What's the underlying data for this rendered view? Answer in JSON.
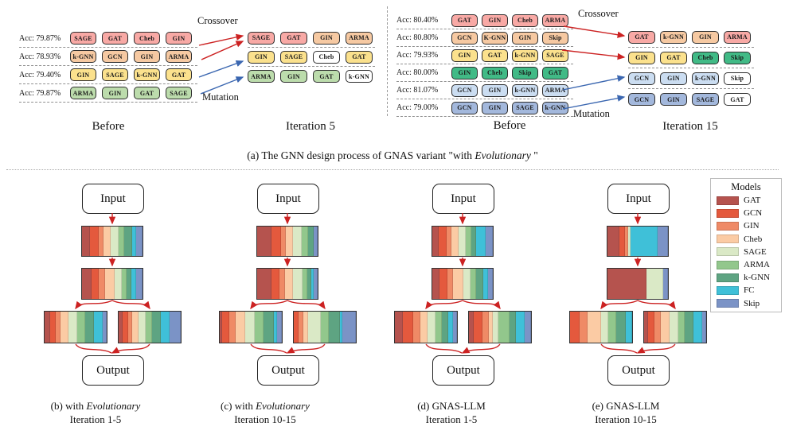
{
  "colors": {
    "chip": {
      "pink": "#F8A9A5",
      "orange": "#F6C9A2",
      "yellow": "#FBE18D",
      "green": "#BCDCAC",
      "vivid_green": "#41BA86",
      "light_blue": "#CBDDF1",
      "blue": "#A3B8DC",
      "white": "#FFFFFF"
    },
    "models": {
      "GAT": "#B5534E",
      "GCN": "#E4593D",
      "GIN": "#EF8A66",
      "Cheb": "#FBCBA4",
      "SAGE": "#DAE9C6",
      "ARMA": "#92C78C",
      "k-GNN": "#5EA482",
      "FC": "#3FC0D8",
      "Skip": "#7B93C6"
    },
    "crossover_arrow": "#CC2222",
    "mutation_arrow": "#3A66B0",
    "connector": "#CC2222"
  },
  "panel_a": {
    "caption": {
      "prefix": "(a) The GNN design process of GNAS variant \"with ",
      "italic": "Evolutionary",
      "suffix": " \""
    },
    "crossover_label": "Crossover",
    "mutation_label": "Mutation",
    "left_before": {
      "label": "Before",
      "rows": [
        {
          "acc": "Acc: 79.87%",
          "chips": [
            [
              "SAGE",
              "pink"
            ],
            [
              "GAT",
              "pink"
            ],
            [
              "Cheb",
              "pink"
            ],
            [
              "GIN",
              "pink"
            ]
          ]
        },
        {
          "acc": "Acc: 78.93%",
          "chips": [
            [
              "k-GNN",
              "orange"
            ],
            [
              "GCN",
              "orange"
            ],
            [
              "GIN",
              "orange"
            ],
            [
              "ARMA",
              "orange"
            ]
          ]
        },
        {
          "acc": "Acc: 79.40%",
          "chips": [
            [
              "GIN",
              "yellow"
            ],
            [
              "SAGE",
              "yellow"
            ],
            [
              "k-GNN",
              "yellow"
            ],
            [
              "GAT",
              "yellow"
            ]
          ]
        },
        {
          "acc": "Acc: 79.87%",
          "chips": [
            [
              "ARMA",
              "green"
            ],
            [
              "GIN",
              "green"
            ],
            [
              "GAT",
              "green"
            ],
            [
              "SAGE",
              "green"
            ]
          ]
        }
      ]
    },
    "iteration5": {
      "label": "Iteration 5",
      "rows": [
        {
          "chips": [
            [
              "SAGE",
              "pink"
            ],
            [
              "GAT",
              "pink"
            ],
            [
              "GIN",
              "orange"
            ],
            [
              "ARMA",
              "orange"
            ]
          ]
        },
        {
          "chips": [
            [
              "GIN",
              "yellow"
            ],
            [
              "SAGE",
              "yellow"
            ],
            [
              "Cheb",
              "white"
            ],
            [
              "GAT",
              "yellow"
            ]
          ]
        },
        {
          "chips": [
            [
              "ARMA",
              "green"
            ],
            [
              "GIN",
              "green"
            ],
            [
              "GAT",
              "green"
            ],
            [
              "k-GNN",
              "white"
            ]
          ]
        }
      ]
    },
    "right_before": {
      "label": "Before",
      "rows": [
        {
          "acc": "Acc: 80.40%",
          "chips": [
            [
              "GAT",
              "pink"
            ],
            [
              "GIN",
              "pink"
            ],
            [
              "Cheb",
              "pink"
            ],
            [
              "ARMA",
              "pink"
            ]
          ]
        },
        {
          "acc": "Acc: 80.80%",
          "chips": [
            [
              "GCN",
              "orange"
            ],
            [
              "K-GNN",
              "orange"
            ],
            [
              "GIN",
              "orange"
            ],
            [
              "Skip",
              "orange"
            ]
          ]
        },
        {
          "acc": "Acc: 79.93%",
          "chips": [
            [
              "GIN",
              "yellow"
            ],
            [
              "GAT",
              "yellow"
            ],
            [
              "k-GNN",
              "yellow"
            ],
            [
              "SAGE",
              "yellow"
            ]
          ]
        },
        {
          "acc": "Acc: 80.00%",
          "chips": [
            [
              "GIN",
              "vivid_green"
            ],
            [
              "Cheb",
              "vivid_green"
            ],
            [
              "Skip",
              "vivid_green"
            ],
            [
              "GAT",
              "vivid_green"
            ]
          ]
        },
        {
          "acc": "Acc: 81.07%",
          "chips": [
            [
              "GCN",
              "light_blue"
            ],
            [
              "GIN",
              "light_blue"
            ],
            [
              "k-GNN",
              "light_blue"
            ],
            [
              "ARMA",
              "light_blue"
            ]
          ]
        },
        {
          "acc": "Acc: 79.00%",
          "chips": [
            [
              "GCN",
              "blue"
            ],
            [
              "GIN",
              "blue"
            ],
            [
              "SAGE",
              "blue"
            ],
            [
              "k-GNN",
              "blue"
            ]
          ]
        }
      ]
    },
    "iteration15": {
      "label": "Iteration 15",
      "rows": [
        {
          "chips": [
            [
              "GAT",
              "pink"
            ],
            [
              "k-GNN",
              "orange"
            ],
            [
              "GIN",
              "orange"
            ],
            [
              "ARMA",
              "pink"
            ]
          ]
        },
        {
          "chips": [
            [
              "GIN",
              "yellow"
            ],
            [
              "GAT",
              "yellow"
            ],
            [
              "Cheb",
              "vivid_green"
            ],
            [
              "Skip",
              "vivid_green"
            ]
          ]
        },
        {
          "chips": [
            [
              "GCN",
              "light_blue"
            ],
            [
              "GIN",
              "light_blue"
            ],
            [
              "k-GNN",
              "light_blue"
            ],
            [
              "Skip",
              "white"
            ]
          ]
        },
        {
          "chips": [
            [
              "GCN",
              "blue"
            ],
            [
              "GIN",
              "blue"
            ],
            [
              "SAGE",
              "blue"
            ],
            [
              "GAT",
              "white"
            ]
          ]
        }
      ]
    }
  },
  "panel_b": {
    "legend": {
      "title": "Models",
      "entries": [
        "GAT",
        "GCN",
        "GIN",
        "Cheb",
        "SAGE",
        "ARMA",
        "k-GNN",
        "FC",
        "Skip"
      ]
    },
    "diagrams": [
      {
        "input": "Input",
        "output": "Output",
        "caption": {
          "prefix": "(b) with ",
          "italic": "Evolutionary",
          "line2": "Iteration 1-5"
        },
        "bars": [
          [
            [
              "GAT",
              13
            ],
            [
              "GCN",
              14
            ],
            [
              "GIN",
              9
            ],
            [
              "Cheb",
              12
            ],
            [
              "SAGE",
              12
            ],
            [
              "ARMA",
              10
            ],
            [
              "k-GNN",
              13
            ],
            [
              "FC",
              6
            ],
            [
              "Skip",
              11
            ]
          ],
          [
            [
              "GAT",
              16
            ],
            [
              "GCN",
              12
            ],
            [
              "GIN",
              10
            ],
            [
              "Cheb",
              16
            ],
            [
              "SAGE",
              12
            ],
            [
              "ARMA",
              8
            ],
            [
              "k-GNN",
              7
            ],
            [
              "FC",
              9
            ],
            [
              "Skip",
              10
            ]
          ],
          [
            [
              "GAT",
              9
            ],
            [
              "GCN",
              9
            ],
            [
              "GIN",
              8
            ],
            [
              "Cheb",
              13
            ],
            [
              "SAGE",
              14
            ],
            [
              "ARMA",
              12
            ],
            [
              "k-GNN",
              14
            ],
            [
              "FC",
              14
            ],
            [
              "Skip",
              7
            ]
          ],
          [
            [
              "GAT",
              6
            ],
            [
              "GCN",
              9
            ],
            [
              "GIN",
              7
            ],
            [
              "Cheb",
              10
            ],
            [
              "SAGE",
              12
            ],
            [
              "ARMA",
              10
            ],
            [
              "k-GNN",
              14
            ],
            [
              "FC",
              14
            ],
            [
              "Skip",
              18
            ]
          ]
        ]
      },
      {
        "input": "Input",
        "output": "Output",
        "caption": {
          "prefix": "(c) with ",
          "italic": "Evolutionary",
          "line2": "Iteration 10-15"
        },
        "bars": [
          [
            [
              "GAT",
              24
            ],
            [
              "GCN",
              16
            ],
            [
              "GIN",
              8
            ],
            [
              "Cheb",
              11
            ],
            [
              "SAGE",
              15
            ],
            [
              "ARMA",
              10
            ],
            [
              "k-GNN",
              10
            ],
            [
              "Skip",
              6
            ]
          ],
          [
            [
              "GAT",
              24
            ],
            [
              "GCN",
              13
            ],
            [
              "GIN",
              9
            ],
            [
              "Cheb",
              13
            ],
            [
              "SAGE",
              16
            ],
            [
              "ARMA",
              8
            ],
            [
              "k-GNN",
              7
            ],
            [
              "FC",
              3
            ],
            [
              "Skip",
              7
            ]
          ],
          [
            [
              "GAT",
              4
            ],
            [
              "GCN",
              12
            ],
            [
              "GIN",
              10
            ],
            [
              "Cheb",
              15
            ],
            [
              "SAGE",
              15
            ],
            [
              "ARMA",
              14
            ],
            [
              "k-GNN",
              17
            ],
            [
              "FC",
              5
            ],
            [
              "Skip",
              8
            ]
          ],
          [
            [
              "GCN",
              8
            ],
            [
              "GIN",
              7
            ],
            [
              "Cheb",
              8
            ],
            [
              "SAGE",
              20
            ],
            [
              "ARMA",
              13
            ],
            [
              "k-GNN",
              18
            ],
            [
              "FC",
              4
            ],
            [
              "Skip",
              22
            ]
          ]
        ]
      },
      {
        "input": "Input",
        "output": "Output",
        "caption": {
          "prefix": "(d) GNAS-LLM",
          "italic": "",
          "line2": "Iteration 1-5"
        },
        "bars": [
          [
            [
              "GAT",
              11
            ],
            [
              "GCN",
              13
            ],
            [
              "GIN",
              7
            ],
            [
              "Cheb",
              13
            ],
            [
              "SAGE",
              11
            ],
            [
              "ARMA",
              9
            ],
            [
              "k-GNN",
              9
            ],
            [
              "FC",
              15
            ],
            [
              "Skip",
              12
            ]
          ],
          [
            [
              "GAT",
              12
            ],
            [
              "GCN",
              13
            ],
            [
              "GIN",
              9
            ],
            [
              "Cheb",
              17
            ],
            [
              "SAGE",
              12
            ],
            [
              "ARMA",
              10
            ],
            [
              "k-GNN",
              11
            ],
            [
              "FC",
              8
            ],
            [
              "Skip",
              8
            ]
          ],
          [
            [
              "GAT",
              13
            ],
            [
              "GCN",
              16
            ],
            [
              "GIN",
              12
            ],
            [
              "Cheb",
              11
            ],
            [
              "SAGE",
              13
            ],
            [
              "ARMA",
              11
            ],
            [
              "k-GNN",
              10
            ],
            [
              "FC",
              8
            ],
            [
              "Skip",
              6
            ]
          ],
          [
            [
              "GAT",
              8
            ],
            [
              "GCN",
              14
            ],
            [
              "GIN",
              10
            ],
            [
              "Cheb",
              6
            ],
            [
              "SAGE",
              10
            ],
            [
              "ARMA",
              18
            ],
            [
              "k-GNN",
              10
            ],
            [
              "FC",
              14
            ],
            [
              "Skip",
              10
            ]
          ]
        ]
      },
      {
        "input": "Input",
        "output": "Output",
        "caption": {
          "prefix": "(e) GNAS-LLM",
          "italic": "",
          "line2": "Iteration 10-15"
        },
        "bars": [
          [
            [
              "GAT",
              20
            ],
            [
              "GCN",
              9
            ],
            [
              "GIN",
              5
            ],
            [
              "SAGE",
              4
            ],
            [
              "FC",
              45
            ],
            [
              "Skip",
              17
            ]
          ],
          [
            [
              "GAT",
              64
            ],
            [
              "SAGE",
              28
            ],
            [
              "Skip",
              8
            ]
          ],
          [
            [
              "GCN",
              16
            ],
            [
              "GIN",
              12
            ],
            [
              "Cheb",
              22
            ],
            [
              "SAGE",
              12
            ],
            [
              "ARMA",
              12
            ],
            [
              "k-GNN",
              16
            ],
            [
              "FC",
              10
            ]
          ],
          [
            [
              "GAT",
              7
            ],
            [
              "GCN",
              10
            ],
            [
              "GIN",
              10
            ],
            [
              "Cheb",
              14
            ],
            [
              "SAGE",
              14
            ],
            [
              "ARMA",
              11
            ],
            [
              "k-GNN",
              13
            ],
            [
              "FC",
              14
            ],
            [
              "Skip",
              7
            ]
          ]
        ]
      }
    ]
  }
}
